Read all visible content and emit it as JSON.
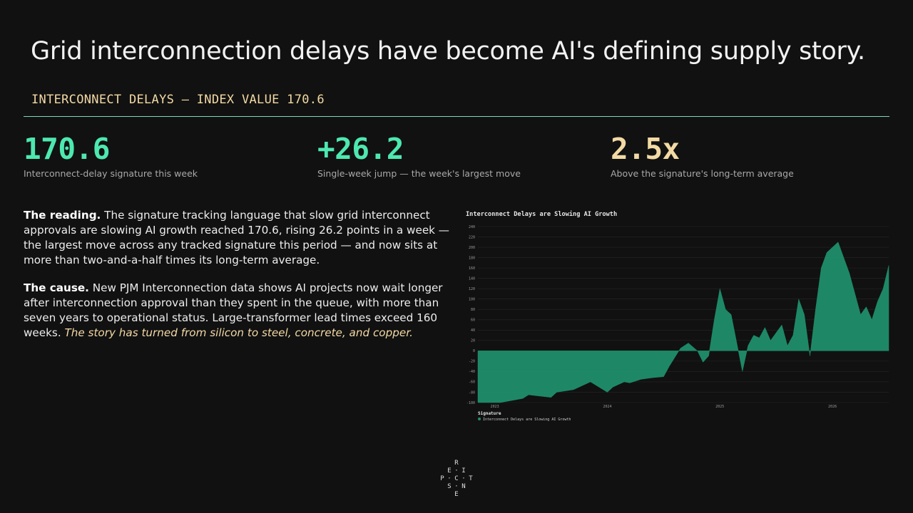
{
  "headline": "Grid interconnection delays have become AI's defining supply story.",
  "eyebrow": "INTERCONNECT DELAYS — INDEX VALUE 170.6",
  "colors": {
    "green": "#4de8b0",
    "cream": "#f3d9a4",
    "chart_fill": "#1f8f6b",
    "rule": "#7fd8b9"
  },
  "stats": [
    {
      "value": "170.6",
      "caption": "Interconnect-delay signature this week",
      "color": "#4de8b0"
    },
    {
      "value": "+26.2",
      "caption": "Single-week jump — the week's largest move",
      "color": "#4de8b0"
    },
    {
      "value": "2.5x",
      "caption": "Above the signature's long-term average",
      "color": "#f3d9a4"
    }
  ],
  "reading": {
    "label": "The reading.",
    "text": " The signature tracking language that slow grid interconnect approvals are slowing AI growth reached 170.6, rising 26.2 points in a week — the largest move across any tracked signature this period — and now sits at more than two-and-a-half times its long-term average."
  },
  "cause": {
    "label": "The cause.",
    "text": " New PJM Interconnection data shows AI projects now wait longer after interconnection approval than they spent in the queue, with more than seven years to operational status. Large-transformer lead times exceed 160 weeks. ",
    "emphasis": "The story has turned from silicon to steel, concrete, and copper",
    "end": "."
  },
  "chart_data": {
    "type": "area",
    "title": "Interconnect Delays are Slowing AI Growth",
    "x_tick_labels": [
      "2023",
      "2024",
      "2025",
      "2026"
    ],
    "x_tick_positions": [
      2023.0,
      2024.0,
      2025.0,
      2026.0
    ],
    "xlim": [
      2022.85,
      2026.5
    ],
    "ylim": [
      -100,
      240
    ],
    "y_ticks": [
      -100,
      -80,
      -60,
      -40,
      -20,
      0,
      20,
      40,
      60,
      80,
      100,
      120,
      140,
      160,
      180,
      200,
      220,
      240
    ],
    "grid": true,
    "legend_title": "Signature",
    "legend_position": "bottom-left",
    "series": [
      {
        "name": "Interconnect Delays are Slowing AI Growth",
        "color": "#1f8f6b",
        "x": [
          2022.85,
          2023.05,
          2023.25,
          2023.3,
          2023.5,
          2023.55,
          2023.7,
          2023.8,
          2023.85,
          2024.0,
          2024.05,
          2024.15,
          2024.2,
          2024.3,
          2024.4,
          2024.5,
          2024.55,
          2024.65,
          2024.72,
          2024.8,
          2024.85,
          2024.9,
          2024.95,
          2025.0,
          2025.05,
          2025.1,
          2025.2,
          2025.25,
          2025.3,
          2025.35,
          2025.4,
          2025.45,
          2025.5,
          2025.55,
          2025.6,
          2025.65,
          2025.7,
          2025.75,
          2025.8,
          2025.85,
          2025.9,
          2025.95,
          2026.0,
          2026.05,
          2026.1,
          2026.15,
          2026.2,
          2026.25,
          2026.3,
          2026.35,
          2026.4,
          2026.45,
          2026.5
        ],
        "y": [
          -100,
          -100,
          -92,
          -85,
          -90,
          -80,
          -75,
          -65,
          -60,
          -80,
          -70,
          -60,
          -62,
          -55,
          -52,
          -50,
          -30,
          5,
          15,
          0,
          -22,
          -10,
          60,
          120,
          80,
          70,
          -40,
          10,
          30,
          25,
          45,
          20,
          35,
          50,
          10,
          30,
          100,
          70,
          -10,
          80,
          160,
          190,
          200,
          210,
          180,
          150,
          110,
          70,
          85,
          60,
          95,
          120,
          165
        ]
      }
    ]
  }
}
